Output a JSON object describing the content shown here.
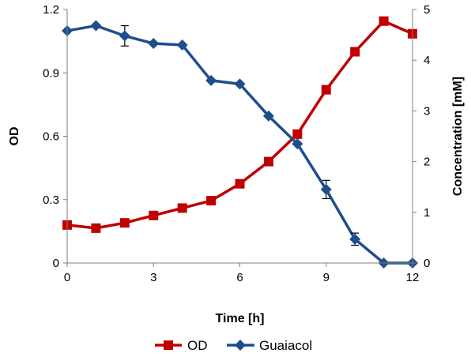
{
  "chart_data": {
    "type": "line",
    "xlabel": "Time [h]",
    "ylabel_left": "OD",
    "ylabel_right": "Concentration [mM]",
    "xlim": [
      0,
      12
    ],
    "ylim_left": [
      0,
      1.2
    ],
    "ylim_right": [
      0,
      5
    ],
    "x_ticks": [
      "0",
      "3",
      "6",
      "9",
      "12"
    ],
    "y_left_ticks": [
      "0",
      "0.3",
      "0.6",
      "0.9",
      "1.2"
    ],
    "y_right_ticks": [
      "0",
      "1",
      "2",
      "3",
      "4",
      "5"
    ],
    "grid": false,
    "legend_position": "bottom",
    "series": [
      {
        "name": "OD",
        "axis": "left",
        "color": "#c00000",
        "marker": "square",
        "x": [
          0,
          1,
          2,
          3,
          4,
          5,
          6,
          7,
          8,
          9,
          10,
          11,
          12
        ],
        "y": [
          0.18,
          0.165,
          0.19,
          0.225,
          0.26,
          0.295,
          0.375,
          0.48,
          0.61,
          0.82,
          1.0,
          1.145,
          1.085
        ]
      },
      {
        "name": "Guaiacol",
        "axis": "right",
        "color": "#1f4e8c",
        "marker": "diamond",
        "x": [
          0,
          1,
          2,
          3,
          4,
          5,
          6,
          7,
          8,
          9,
          10,
          11,
          12
        ],
        "y": [
          4.58,
          4.68,
          4.48,
          4.33,
          4.3,
          3.6,
          3.53,
          2.9,
          2.35,
          1.45,
          0.47,
          0.0,
          0.0
        ],
        "error": [
          0,
          0,
          0.2,
          0,
          0,
          0,
          0,
          0,
          0,
          0.18,
          0.12,
          0,
          0
        ]
      }
    ]
  }
}
